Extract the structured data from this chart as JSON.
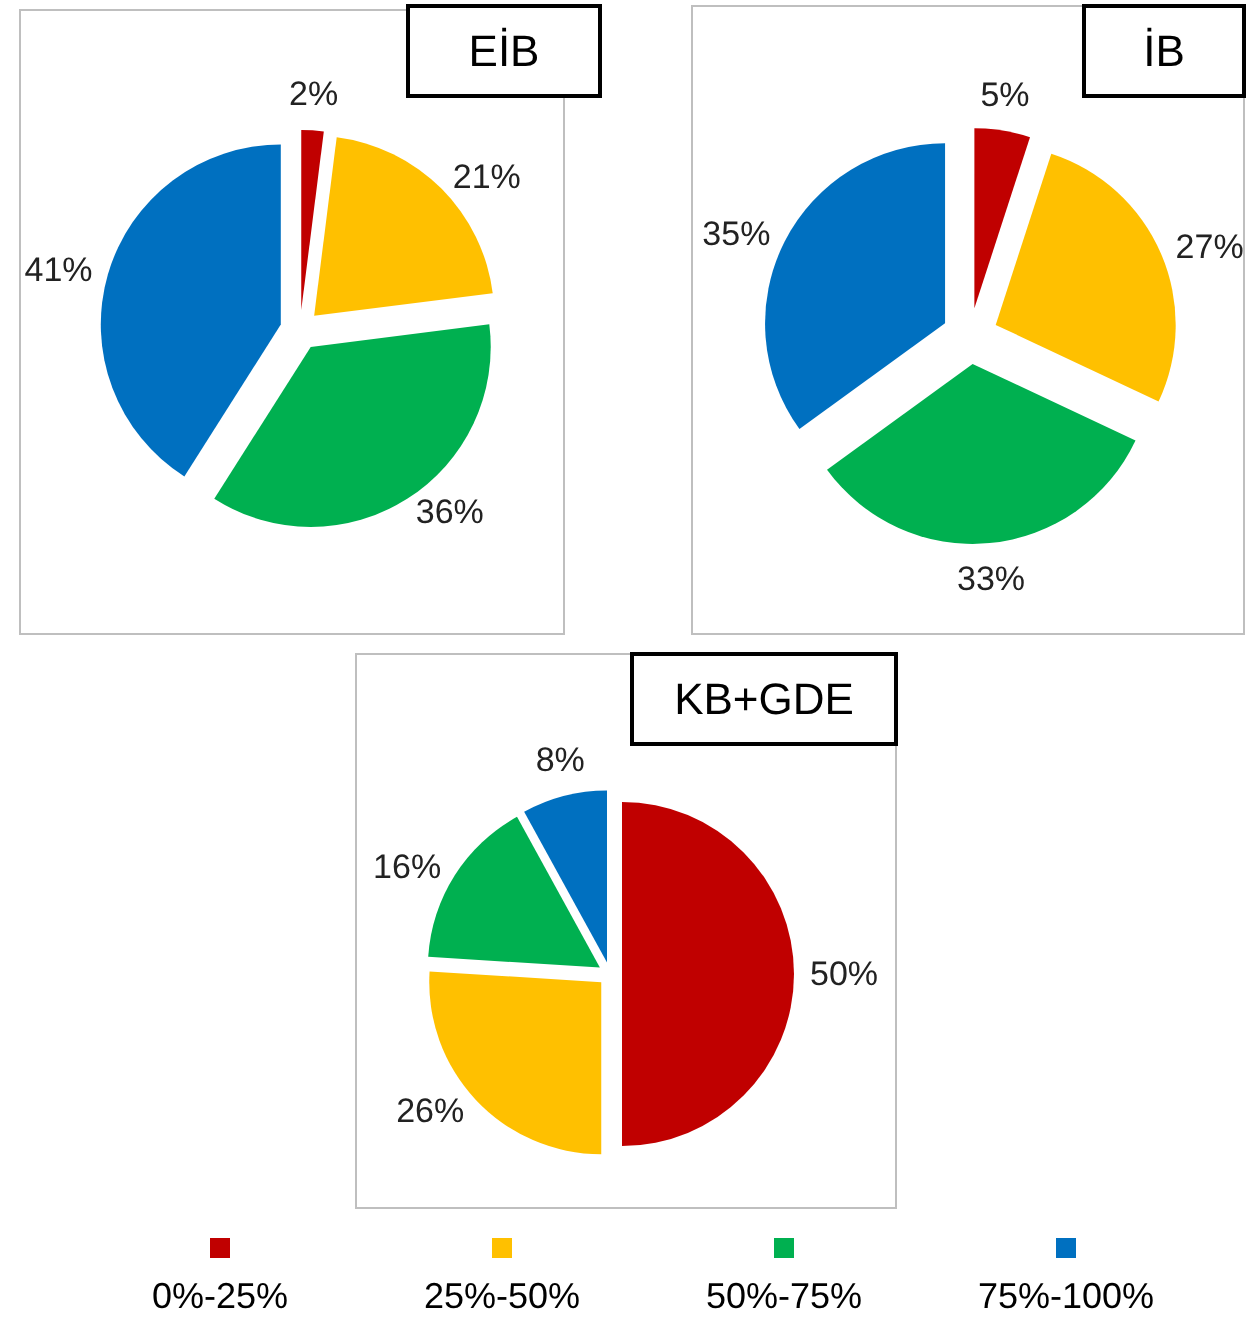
{
  "chart_data": [
    {
      "type": "pie",
      "title": "EİB",
      "values": [
        2,
        21,
        36,
        41
      ],
      "value_labels": [
        "2%",
        "21%",
        "36%",
        "41%"
      ],
      "colors": [
        "#c00000",
        "#ffc000",
        "#00b050",
        "#0070c0"
      ]
    },
    {
      "type": "pie",
      "title": "İB",
      "values": [
        5,
        27,
        33,
        35
      ],
      "value_labels": [
        "5%",
        "27%",
        "33%",
        "35%"
      ],
      "colors": [
        "#c00000",
        "#ffc000",
        "#00b050",
        "#0070c0"
      ]
    },
    {
      "type": "pie",
      "title": "KB+GDE",
      "categories": [
        "0%-25%",
        "25%-50%",
        "50%-75%",
        "75%-100%"
      ],
      "values": [
        50,
        26,
        16,
        8
      ],
      "value_labels": [
        "50%",
        "26%",
        "16%",
        "8%"
      ],
      "colors": [
        "#c00000",
        "#ffc000",
        "#00b050",
        "#0070c0"
      ],
      "legend": "bottom"
    }
  ]
}
